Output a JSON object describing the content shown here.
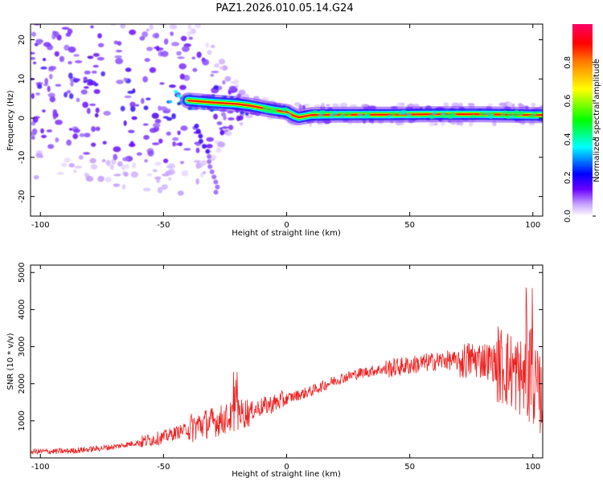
{
  "title": "PAZ1.2026.010.05.14.G24",
  "chart_data": [
    {
      "type": "heatmap",
      "xlabel": "Height of straight line (km)",
      "ylabel": "Frequency (Hz)",
      "xlim": [
        -104,
        104
      ],
      "ylim": [
        -25,
        24
      ],
      "xticks": [
        -100,
        -50,
        0,
        50,
        100
      ],
      "yticks": [
        -20,
        -10,
        0,
        10,
        20
      ],
      "xtick_labels": [
        "-100",
        "-50",
        "0",
        "50",
        "100"
      ],
      "ytick_labels": [
        "-20",
        "-10",
        "0",
        "10",
        "20"
      ],
      "colorbar": {
        "label": "Normalized spectral amplitude",
        "range": [
          0,
          1
        ],
        "ticks": [
          0.0,
          0.2,
          0.4,
          0.6,
          0.8
        ],
        "tick_labels": [
          "0.0",
          "0.2",
          "0.4",
          "0.6",
          "0.8"
        ],
        "colors": [
          "#ffffff",
          "#b088ff",
          "#5500ff",
          "#0000ff",
          "#00ffff",
          "#00ff00",
          "#ffff00",
          "#ff8800",
          "#ff0000",
          "#ff0066"
        ]
      },
      "ridge": [
        {
          "x": -40,
          "y": 4.5
        },
        {
          "x": -30,
          "y": 4.0
        },
        {
          "x": -20,
          "y": 3.6
        },
        {
          "x": -15,
          "y": 3.2
        },
        {
          "x": -10,
          "y": 2.6
        },
        {
          "x": -5,
          "y": 2.0
        },
        {
          "x": 0,
          "y": 1.6
        },
        {
          "x": 3,
          "y": 0.6
        },
        {
          "x": 5,
          "y": 0.2
        },
        {
          "x": 10,
          "y": 0.8
        },
        {
          "x": 20,
          "y": 0.9
        },
        {
          "x": 40,
          "y": 0.9
        },
        {
          "x": 60,
          "y": 1.0
        },
        {
          "x": 80,
          "y": 1.0
        },
        {
          "x": 100,
          "y": 0.8
        },
        {
          "x": 104,
          "y": 0.8
        }
      ]
    },
    {
      "type": "line",
      "xlabel": "Height of straight line (km)",
      "ylabel": "SNR (10 * v/v)",
      "xlim": [
        -104,
        104
      ],
      "ylim": [
        0,
        5200
      ],
      "xticks": [
        -100,
        -50,
        0,
        50,
        100
      ],
      "yticks": [
        1000,
        2000,
        3000,
        4000,
        5000
      ],
      "xtick_labels": [
        "-100",
        "-50",
        "0",
        "50",
        "100"
      ],
      "ytick_labels": [
        "1000",
        "2000",
        "3000",
        "4000",
        "5000"
      ],
      "color": "#ee2222",
      "series": [
        {
          "name": "SNR",
          "x": [
            -104,
            -90,
            -80,
            -70,
            -60,
            -50,
            -45,
            -40,
            -35,
            -30,
            -25,
            -20,
            -15,
            -10,
            -5,
            0,
            5,
            10,
            15,
            20,
            25,
            30,
            35,
            40,
            45,
            50,
            55,
            60,
            65,
            70,
            75,
            80,
            85,
            90,
            95,
            100,
            104
          ],
          "values": [
            170,
            180,
            230,
            300,
            420,
            560,
            680,
            780,
            900,
            960,
            1050,
            1150,
            1250,
            1380,
            1470,
            1600,
            1700,
            1800,
            1950,
            2100,
            2200,
            2290,
            2350,
            2400,
            2450,
            2500,
            2550,
            2600,
            2640,
            2600,
            2650,
            2650,
            2550,
            2400,
            2200,
            2000,
            1600
          ]
        }
      ]
    }
  ]
}
